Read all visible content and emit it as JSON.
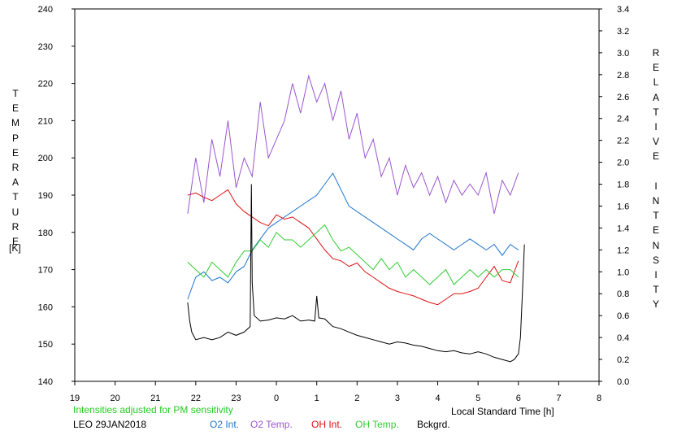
{
  "chart_data": {
    "type": "line",
    "left_axis": {
      "label": "TEMPERATURE",
      "unit": "[K]",
      "range": [
        140,
        240
      ],
      "ticks": [
        "140",
        "150",
        "160",
        "170",
        "180",
        "190",
        "200",
        "210",
        "220",
        "230",
        "240"
      ]
    },
    "right_axis": {
      "label": "RELATIVE INTENSITY",
      "range": [
        0.0,
        3.4
      ],
      "ticks": [
        "0.0",
        "0.2",
        "0.4",
        "0.6",
        "0.8",
        "1.0",
        "1.2",
        "1.4",
        "1.6",
        "1.8",
        "2.0",
        "2.2",
        "2.4",
        "2.6",
        "2.8",
        "3.0",
        "3.2",
        "3.4"
      ]
    },
    "x_axis": {
      "label": "Local Standard Time [h]",
      "range": [
        19,
        32
      ],
      "ticks": [
        "19",
        "20",
        "21",
        "22",
        "23",
        "0",
        "1",
        "2",
        "3",
        "4",
        "5",
        "6",
        "7",
        "8"
      ]
    },
    "note": "Intensities adjusted for PM sensitivity",
    "station": "LEO 29JAN2018",
    "grid": false,
    "legend_position": "bottom",
    "series": [
      {
        "name": "O2 Int.",
        "color": "#1f77d0",
        "axis": "right",
        "x": [
          21.8,
          22.0,
          22.2,
          22.4,
          22.6,
          22.8,
          23.0,
          23.2,
          23.4,
          23.6,
          23.8,
          24.0,
          24.2,
          24.4,
          24.6,
          24.8,
          25.0,
          25.2,
          25.4,
          25.6,
          25.8,
          26.0,
          26.2,
          26.4,
          26.6,
          26.8,
          27.0,
          27.2,
          27.4,
          27.6,
          27.8,
          28.0,
          28.2,
          28.4,
          28.6,
          28.8,
          29.0,
          29.2,
          29.4,
          29.6,
          29.8,
          30.0
        ],
        "y": [
          0.75,
          0.95,
          1.0,
          0.92,
          0.95,
          0.9,
          1.0,
          1.05,
          1.2,
          1.3,
          1.4,
          1.45,
          1.5,
          1.55,
          1.6,
          1.65,
          1.7,
          1.8,
          1.9,
          1.75,
          1.6,
          1.55,
          1.5,
          1.45,
          1.4,
          1.35,
          1.3,
          1.25,
          1.2,
          1.3,
          1.35,
          1.3,
          1.25,
          1.2,
          1.25,
          1.3,
          1.25,
          1.2,
          1.25,
          1.15,
          1.25,
          1.2
        ]
      },
      {
        "name": "O2 Temp.",
        "color": "#9a55cf",
        "axis": "left",
        "x": [
          21.8,
          22.0,
          22.2,
          22.4,
          22.6,
          22.8,
          23.0,
          23.2,
          23.4,
          23.6,
          23.8,
          24.0,
          24.2,
          24.4,
          24.6,
          24.8,
          25.0,
          25.2,
          25.4,
          25.6,
          25.8,
          26.0,
          26.2,
          26.4,
          26.6,
          26.8,
          27.0,
          27.2,
          27.4,
          27.6,
          27.8,
          28.0,
          28.2,
          28.4,
          28.6,
          28.8,
          29.0,
          29.2,
          29.4,
          29.6,
          29.8,
          30.0
        ],
        "y": [
          185,
          200,
          188,
          205,
          195,
          210,
          192,
          200,
          195,
          215,
          200,
          205,
          210,
          220,
          212,
          222,
          215,
          220,
          210,
          218,
          205,
          212,
          200,
          205,
          195,
          200,
          190,
          198,
          192,
          196,
          190,
          195,
          188,
          194,
          190,
          193,
          190,
          196,
          185,
          194,
          190,
          196
        ]
      },
      {
        "name": "OH Int.",
        "color": "#dd1111",
        "axis": "right",
        "x": [
          21.8,
          22.0,
          22.2,
          22.4,
          22.6,
          22.8,
          23.0,
          23.2,
          23.4,
          23.6,
          23.8,
          24.0,
          24.2,
          24.4,
          24.6,
          24.8,
          25.0,
          25.2,
          25.4,
          25.6,
          25.8,
          26.0,
          26.2,
          26.4,
          26.6,
          26.8,
          27.0,
          27.2,
          27.4,
          27.6,
          27.8,
          28.0,
          28.2,
          28.4,
          28.6,
          28.8,
          29.0,
          29.2,
          29.4,
          29.6,
          29.8,
          30.0
        ],
        "y": [
          1.7,
          1.72,
          1.68,
          1.65,
          1.7,
          1.75,
          1.62,
          1.55,
          1.5,
          1.45,
          1.42,
          1.52,
          1.48,
          1.5,
          1.45,
          1.4,
          1.3,
          1.2,
          1.12,
          1.1,
          1.05,
          1.08,
          1.0,
          0.95,
          0.9,
          0.85,
          0.82,
          0.8,
          0.78,
          0.75,
          0.72,
          0.7,
          0.75,
          0.8,
          0.8,
          0.82,
          0.85,
          0.95,
          1.05,
          0.92,
          0.9,
          1.1
        ]
      },
      {
        "name": "OH Temp.",
        "color": "#33cc33",
        "axis": "left",
        "x": [
          21.8,
          22.0,
          22.2,
          22.4,
          22.6,
          22.8,
          23.0,
          23.2,
          23.4,
          23.6,
          23.8,
          24.0,
          24.2,
          24.4,
          24.6,
          24.8,
          25.0,
          25.2,
          25.4,
          25.6,
          25.8,
          26.0,
          26.2,
          26.4,
          26.6,
          26.8,
          27.0,
          27.2,
          27.4,
          27.6,
          27.8,
          28.0,
          28.2,
          28.4,
          28.6,
          28.8,
          29.0,
          29.2,
          29.4,
          29.6,
          29.8,
          30.0
        ],
        "y": [
          172,
          170,
          168,
          172,
          170,
          168,
          172,
          175,
          175,
          178,
          176,
          180,
          178,
          178,
          176,
          178,
          180,
          182,
          178,
          175,
          176,
          174,
          172,
          170,
          173,
          170,
          172,
          168,
          170,
          168,
          166,
          168,
          170,
          166,
          168,
          170,
          168,
          170,
          168,
          170,
          170,
          168
        ]
      },
      {
        "name": "Bckgrd.",
        "color": "#000000",
        "axis": "right",
        "x": [
          21.8,
          21.85,
          21.9,
          22.0,
          22.2,
          22.4,
          22.6,
          22.8,
          23.0,
          23.2,
          23.35,
          23.38,
          23.4,
          23.45,
          23.6,
          23.8,
          24.0,
          24.2,
          24.4,
          24.6,
          24.8,
          24.95,
          25.0,
          25.05,
          25.2,
          25.4,
          25.6,
          25.8,
          26.0,
          26.2,
          26.4,
          26.6,
          26.8,
          27.0,
          27.2,
          27.4,
          27.6,
          27.8,
          28.0,
          28.2,
          28.4,
          28.6,
          28.8,
          29.0,
          29.2,
          29.4,
          29.6,
          29.8,
          29.9,
          30.0,
          30.05,
          30.1,
          30.15
        ],
        "y": [
          0.72,
          0.55,
          0.45,
          0.38,
          0.4,
          0.38,
          0.4,
          0.45,
          0.42,
          0.45,
          0.5,
          1.8,
          0.9,
          0.6,
          0.55,
          0.56,
          0.58,
          0.57,
          0.6,
          0.55,
          0.56,
          0.55,
          0.78,
          0.58,
          0.57,
          0.5,
          0.48,
          0.45,
          0.42,
          0.4,
          0.38,
          0.36,
          0.34,
          0.36,
          0.35,
          0.33,
          0.32,
          0.3,
          0.28,
          0.27,
          0.28,
          0.26,
          0.25,
          0.27,
          0.25,
          0.22,
          0.2,
          0.18,
          0.2,
          0.25,
          0.4,
          0.8,
          1.25
        ]
      }
    ]
  }
}
